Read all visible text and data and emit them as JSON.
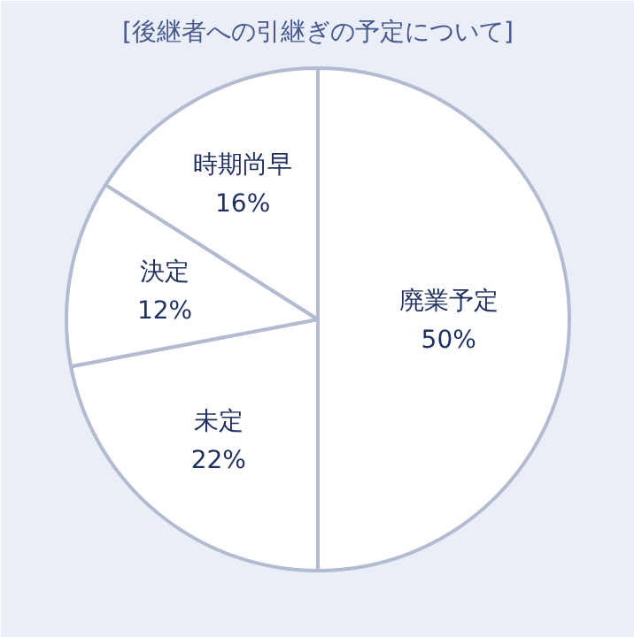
{
  "chart_data": {
    "type": "pie",
    "title": "[後継者への引継ぎの予定について]",
    "categories": [
      "廃業予定",
      "未定",
      "決定",
      "時期尚早"
    ],
    "values": [
      50,
      22,
      12,
      16
    ],
    "colors": [
      "#ffffff",
      "#ffffff",
      "#ffffff",
      "#ffffff"
    ],
    "value_labels": [
      "50%",
      "22%",
      "12%",
      "16%"
    ]
  }
}
